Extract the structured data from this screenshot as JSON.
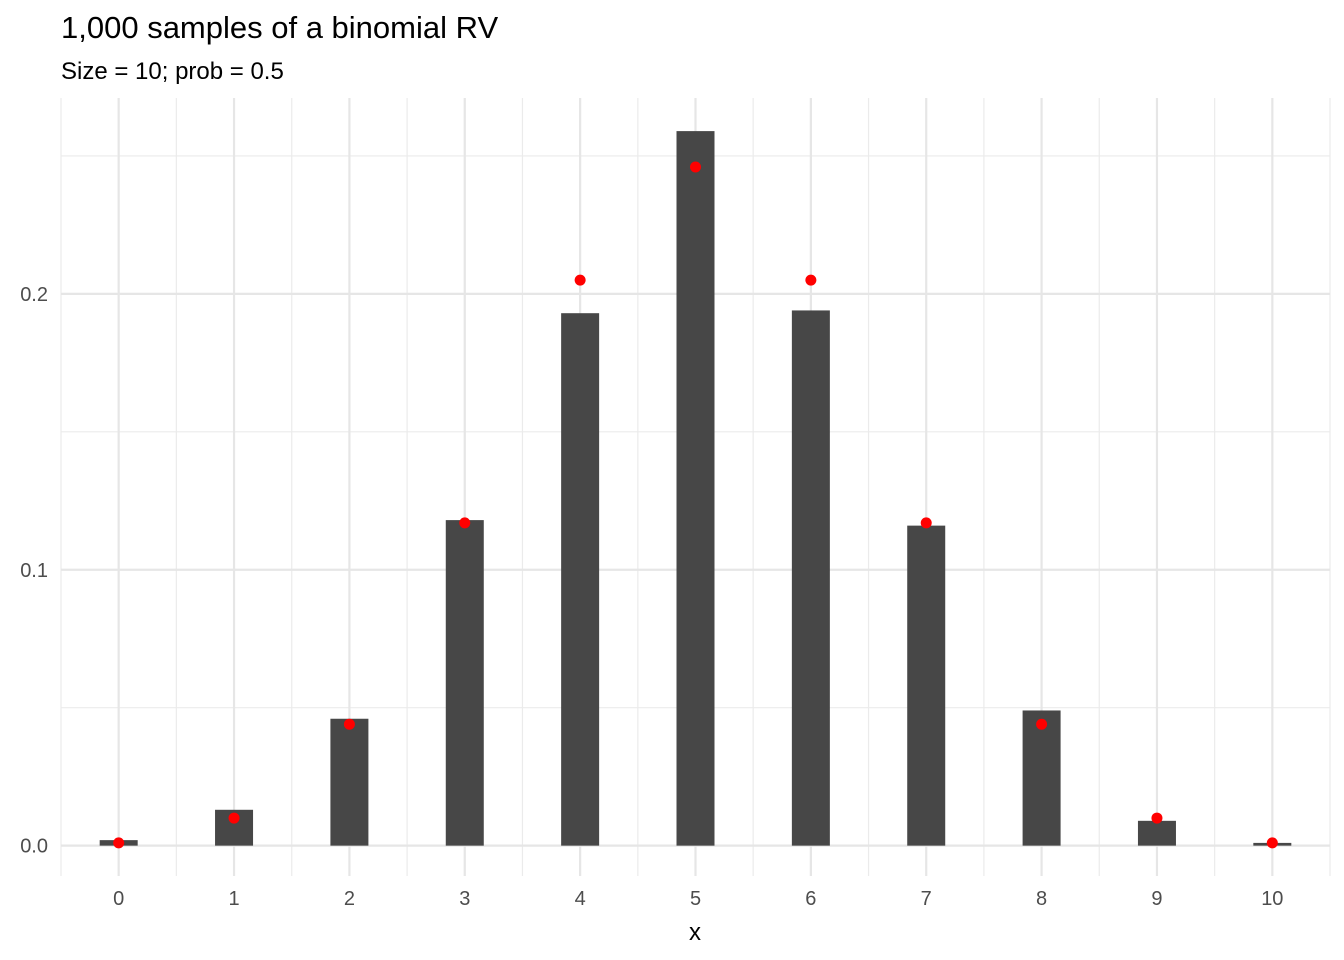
{
  "chart_data": {
    "type": "bar",
    "title": "1,000 samples of a binomial RV",
    "subtitle": "Size = 10; prob = 0.5",
    "xlabel": "x",
    "ylabel": "",
    "categories": [
      "0",
      "1",
      "2",
      "3",
      "4",
      "5",
      "6",
      "7",
      "8",
      "9",
      "10"
    ],
    "series": [
      {
        "kind": "bar",
        "color": "#474747",
        "values": [
          0.002,
          0.013,
          0.046,
          0.118,
          0.193,
          0.259,
          0.194,
          0.116,
          0.049,
          0.009,
          0.001
        ]
      },
      {
        "kind": "point",
        "color": "#ff0000",
        "values": [
          0.001,
          0.01,
          0.044,
          0.117,
          0.205,
          0.246,
          0.205,
          0.117,
          0.044,
          0.01,
          0.001
        ]
      }
    ],
    "y_ticks": [
      "0.0",
      "0.1",
      "0.2"
    ],
    "ylim": [
      -0.011,
      0.271
    ],
    "xlim": [
      -0.5,
      10.5
    ],
    "grid": true
  }
}
